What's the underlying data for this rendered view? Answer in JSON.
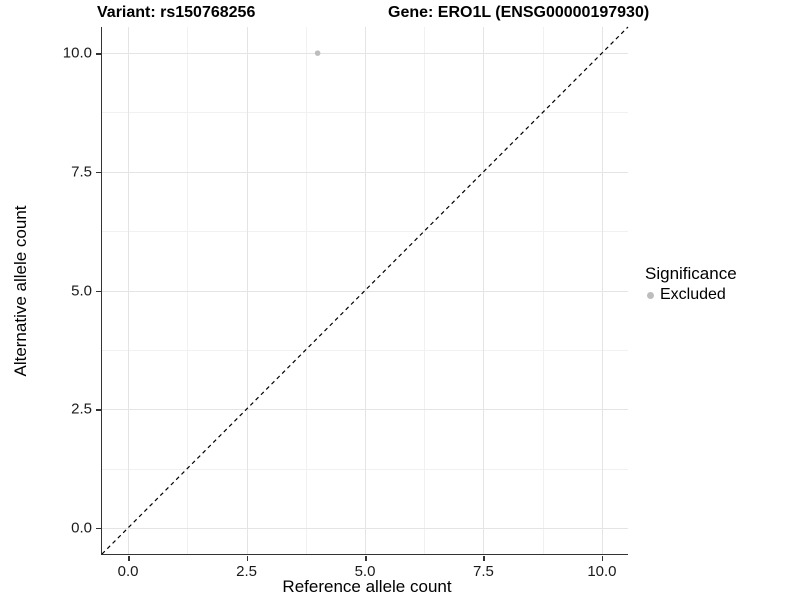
{
  "title": {
    "variant": "Variant: rs150768256",
    "gene": "Gene: ERO1L (ENSG00000197930)"
  },
  "axes": {
    "x_label": "Reference allele count",
    "y_label": "Alternative allele count",
    "x_tick_labels": [
      "0.0",
      "2.5",
      "5.0",
      "7.5",
      "10.0"
    ],
    "y_tick_labels": [
      "0.0",
      "2.5",
      "5.0",
      "7.5",
      "10.0"
    ]
  },
  "legend": {
    "title": "Significance",
    "items": [
      {
        "label": "Excluded",
        "color": "#bdbdbd"
      }
    ]
  },
  "colors": {
    "background": "#ffffff",
    "grid_major": "#e4e4e4",
    "grid_minor": "#f1f1f1",
    "axis_line": "#333333",
    "tick_text": "#1a1a1a",
    "point": "#bdbdbd",
    "reference_line": "#000000"
  },
  "chart_data": {
    "type": "scatter",
    "title": "Variant: rs150768256   Gene: ERO1L (ENSG00000197930)",
    "xlabel": "Reference allele count",
    "ylabel": "Alternative allele count",
    "xlim": [
      -0.55,
      10.55
    ],
    "ylim": [
      -0.55,
      10.55
    ],
    "x_major_ticks": [
      0,
      2.5,
      5,
      7.5,
      10
    ],
    "y_major_ticks": [
      0,
      2.5,
      5,
      7.5,
      10
    ],
    "x_minor_ticks": [
      1.25,
      3.75,
      6.25,
      8.75
    ],
    "y_minor_ticks": [
      1.25,
      3.75,
      6.25,
      8.75
    ],
    "grid": true,
    "legend_position": "right",
    "legend_title": "Significance",
    "series": [
      {
        "name": "Excluded",
        "color": "#bdbdbd",
        "points": [
          {
            "x": 4,
            "y": 10
          }
        ]
      }
    ],
    "reference_line": {
      "slope": 1,
      "intercept": 0,
      "style": "dashed",
      "color": "#000000"
    }
  }
}
